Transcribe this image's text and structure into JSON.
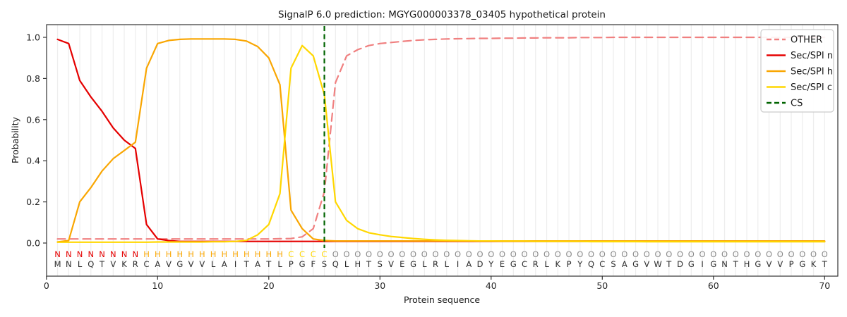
{
  "chart_data": {
    "type": "line",
    "title": "SignalP 6.0 prediction: MGYG000003378_03405 hypothetical protein",
    "xlabel": "Protein sequence",
    "ylabel": "Probability",
    "xticks": [
      0,
      10,
      20,
      30,
      40,
      50,
      60,
      70
    ],
    "yticks": [
      "0.0",
      "0.2",
      "0.4",
      "0.6",
      "0.8",
      "1.0"
    ],
    "xlim": [
      0,
      71.2
    ],
    "ylim": [
      0,
      1.0
    ],
    "grid": "vertical-per-residue",
    "legend_position": "upper right",
    "x_start": 1,
    "cs_position": 25,
    "series": [
      {
        "name": "OTHER",
        "color": "#f08080",
        "dash": "11,7",
        "width": 2.2,
        "values": [
          0.02,
          0.02,
          0.02,
          0.02,
          0.02,
          0.02,
          0.02,
          0.02,
          0.02,
          0.02,
          0.02,
          0.02,
          0.02,
          0.02,
          0.02,
          0.02,
          0.02,
          0.02,
          0.02,
          0.02,
          0.021,
          0.022,
          0.03,
          0.07,
          0.25,
          0.78,
          0.91,
          0.94,
          0.96,
          0.97,
          0.975,
          0.98,
          0.985,
          0.988,
          0.99,
          0.992,
          0.993,
          0.994,
          0.995,
          0.995,
          0.996,
          0.996,
          0.997,
          0.997,
          0.998,
          0.998,
          0.998,
          0.999,
          0.999,
          0.999,
          1.0,
          1.0,
          1.0,
          1.0,
          1.0,
          1.0,
          1.0,
          1.0,
          1.0,
          1.0,
          1.0,
          1.0,
          1.0,
          1.0,
          1.0,
          1.0,
          1.0,
          1.0,
          1.0,
          1.0
        ]
      },
      {
        "name": "Sec/SPI n",
        "color": "#e50000",
        "dash": "",
        "width": 2.2,
        "values": [
          0.99,
          0.97,
          0.79,
          0.71,
          0.64,
          0.56,
          0.5,
          0.46,
          0.09,
          0.02,
          0.012,
          0.008,
          0.008,
          0.008,
          0.008,
          0.008,
          0.008,
          0.008,
          0.008,
          0.008,
          0.008,
          0.008,
          0.008,
          0.008,
          0.008,
          0.008,
          0.008,
          0.008,
          0.008,
          0.008,
          0.008,
          0.008,
          0.008,
          0.008,
          0.008,
          0.008,
          0.008,
          0.008,
          0.008,
          0.008,
          0.008,
          0.008,
          0.008,
          0.008,
          0.008,
          0.008,
          0.008,
          0.008,
          0.008,
          0.008,
          0.008,
          0.008,
          0.008,
          0.008,
          0.008,
          0.008,
          0.008,
          0.008,
          0.008,
          0.008,
          0.008,
          0.008,
          0.008,
          0.008,
          0.008,
          0.008,
          0.008,
          0.008,
          0.008,
          0.008
        ]
      },
      {
        "name": "Sec/SPI h",
        "color": "#f9a602",
        "dash": "",
        "width": 2.2,
        "values": [
          0.005,
          0.012,
          0.2,
          0.27,
          0.35,
          0.41,
          0.45,
          0.49,
          0.85,
          0.97,
          0.985,
          0.99,
          0.992,
          0.992,
          0.992,
          0.992,
          0.99,
          0.982,
          0.955,
          0.9,
          0.77,
          0.16,
          0.07,
          0.02,
          0.012,
          0.01,
          0.01,
          0.01,
          0.01,
          0.01,
          0.01,
          0.01,
          0.01,
          0.01,
          0.01,
          0.01,
          0.01,
          0.01,
          0.01,
          0.01,
          0.01,
          0.01,
          0.01,
          0.01,
          0.01,
          0.01,
          0.01,
          0.01,
          0.01,
          0.01,
          0.01,
          0.01,
          0.01,
          0.01,
          0.01,
          0.01,
          0.01,
          0.01,
          0.01,
          0.01,
          0.01,
          0.01,
          0.01,
          0.01,
          0.01,
          0.01,
          0.01,
          0.01,
          0.01,
          0.01
        ]
      },
      {
        "name": "Sec/SPI c",
        "color": "#ffd700",
        "dash": "",
        "width": 2.2,
        "values": [
          0.004,
          0.004,
          0.004,
          0.004,
          0.004,
          0.004,
          0.004,
          0.004,
          0.004,
          0.005,
          0.005,
          0.005,
          0.005,
          0.005,
          0.006,
          0.006,
          0.008,
          0.013,
          0.04,
          0.09,
          0.24,
          0.85,
          0.96,
          0.91,
          0.72,
          0.2,
          0.11,
          0.07,
          0.05,
          0.04,
          0.032,
          0.027,
          0.022,
          0.018,
          0.015,
          0.013,
          0.012,
          0.011,
          0.01,
          0.01,
          0.009,
          0.009,
          0.009,
          0.008,
          0.008,
          0.008,
          0.008,
          0.008,
          0.007,
          0.007,
          0.007,
          0.007,
          0.007,
          0.006,
          0.006,
          0.006,
          0.006,
          0.006,
          0.006,
          0.006,
          0.006,
          0.006,
          0.006,
          0.006,
          0.006,
          0.006,
          0.006,
          0.006,
          0.006,
          0.006
        ]
      }
    ],
    "cs_line": {
      "name": "CS",
      "color": "#006400",
      "dash": "7,4.5",
      "width": 2.2
    },
    "sequence": "MNLQTVKRCAVGVVLAITATLPGFSQLHTSVEGLRLIADYEGCRLKPYQCSAGVWTDGIGNTHGVVPGKT",
    "states": "NNNNNNNNHHHHHHHHHHHHHCCCCOOOOOOOOOOOOOOOOOOOOOOOOOOOOOOOOOOOOOOOOOOOOO",
    "state_colors": {
      "N": "#e50000",
      "H": "#f9a602",
      "C": "#ffd700",
      "O": "#8a8a8a"
    },
    "sequence_color": "#2b2b2b",
    "legend": [
      "OTHER",
      "Sec/SPI n",
      "Sec/SPI h",
      "Sec/SPI c",
      "CS"
    ]
  },
  "style_colors": {
    "grid": "#ededed",
    "spine": "#333333",
    "tick_text": "#262626",
    "legend_border": "#cccccc",
    "legend_bg": "#ffffff"
  }
}
